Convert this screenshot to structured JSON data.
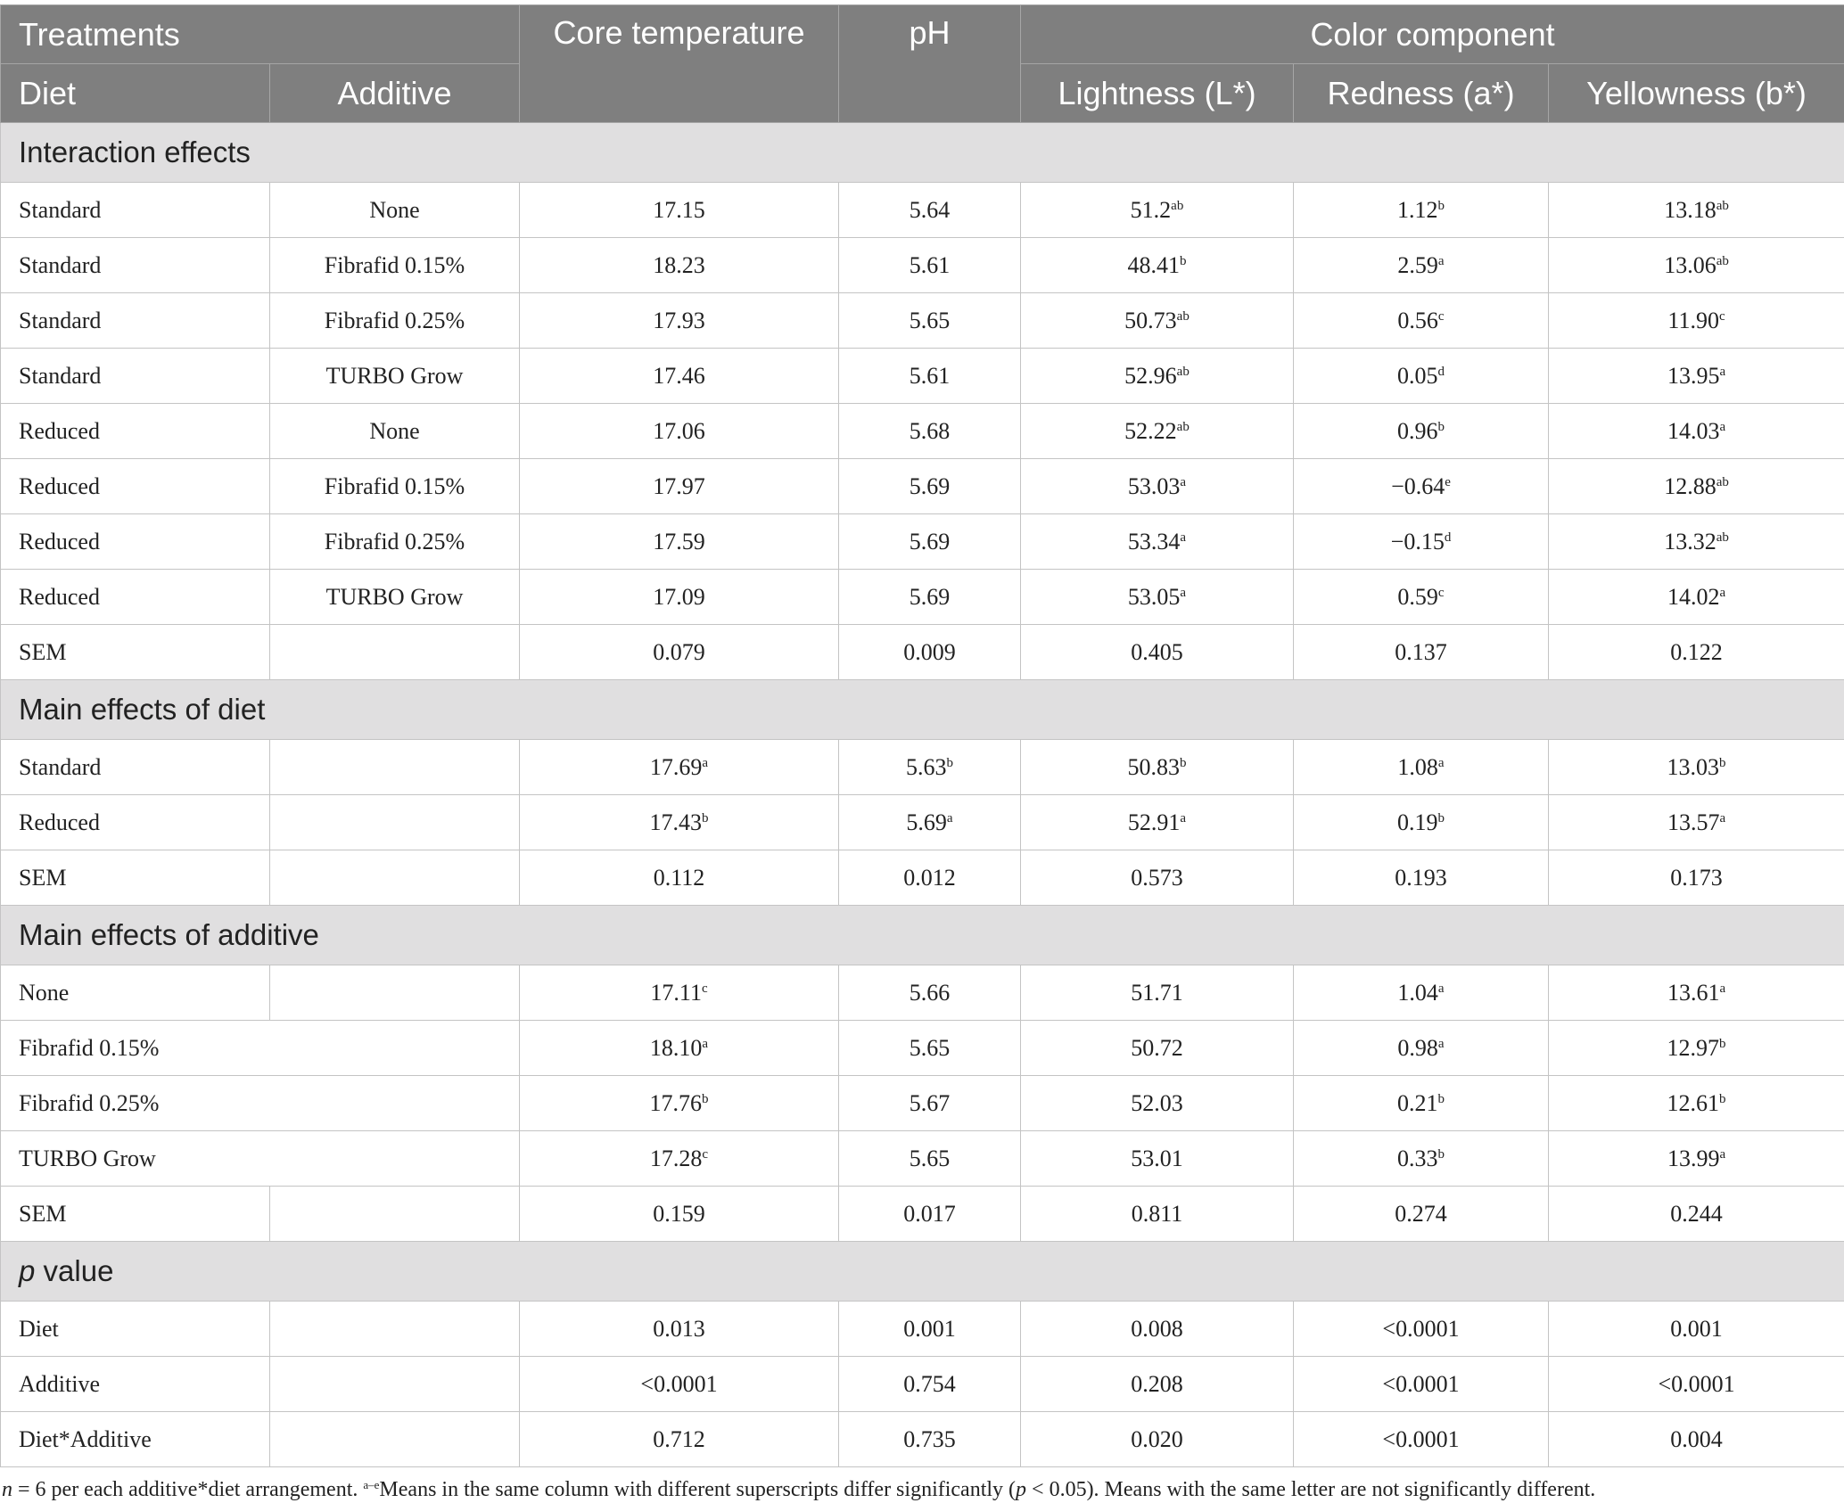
{
  "header": {
    "treatments": "Treatments",
    "diet": "Diet",
    "additive": "Additive",
    "core": "Core temperature",
    "ph": "pH",
    "color": "Color component",
    "l": "Lightness (L*)",
    "a": "Redness (a*)",
    "b": "Yellowness (b*)"
  },
  "sections": [
    {
      "title": [
        {
          "t": "Interaction effects"
        }
      ],
      "rows": [
        {
          "label": "Standard",
          "additive": "None",
          "values": [
            {
              "v": "17.15"
            },
            {
              "v": "5.64"
            },
            {
              "v": "51.2",
              "sup": "ab"
            },
            {
              "v": "1.12",
              "sup": "b"
            },
            {
              "v": "13.18",
              "sup": "ab"
            }
          ]
        },
        {
          "label": "Standard",
          "additive": "Fibrafid 0.15%",
          "values": [
            {
              "v": "18.23"
            },
            {
              "v": "5.61"
            },
            {
              "v": "48.41",
              "sup": "b"
            },
            {
              "v": "2.59",
              "sup": "a"
            },
            {
              "v": "13.06",
              "sup": "ab"
            }
          ]
        },
        {
          "label": "Standard",
          "additive": "Fibrafid 0.25%",
          "values": [
            {
              "v": "17.93"
            },
            {
              "v": "5.65"
            },
            {
              "v": "50.73",
              "sup": "ab"
            },
            {
              "v": "0.56",
              "sup": "c"
            },
            {
              "v": "11.90",
              "sup": "c"
            }
          ]
        },
        {
          "label": "Standard",
          "additive": "TURBO Grow",
          "values": [
            {
              "v": "17.46"
            },
            {
              "v": "5.61"
            },
            {
              "v": "52.96",
              "sup": "ab"
            },
            {
              "v": "0.05",
              "sup": "d"
            },
            {
              "v": "13.95",
              "sup": "a"
            }
          ]
        },
        {
          "label": "Reduced",
          "additive": "None",
          "values": [
            {
              "v": "17.06"
            },
            {
              "v": "5.68"
            },
            {
              "v": "52.22",
              "sup": "ab"
            },
            {
              "v": "0.96",
              "sup": "b"
            },
            {
              "v": "14.03",
              "sup": "a"
            }
          ]
        },
        {
          "label": "Reduced",
          "additive": "Fibrafid 0.15%",
          "values": [
            {
              "v": "17.97"
            },
            {
              "v": "5.69"
            },
            {
              "v": "53.03",
              "sup": "a"
            },
            {
              "v": "−0.64",
              "sup": "e"
            },
            {
              "v": "12.88",
              "sup": "ab"
            }
          ]
        },
        {
          "label": "Reduced",
          "additive": "Fibrafid 0.25%",
          "values": [
            {
              "v": "17.59"
            },
            {
              "v": "5.69"
            },
            {
              "v": "53.34",
              "sup": "a"
            },
            {
              "v": "−0.15",
              "sup": "d"
            },
            {
              "v": "13.32",
              "sup": "ab"
            }
          ]
        },
        {
          "label": "Reduced",
          "additive": "TURBO Grow",
          "values": [
            {
              "v": "17.09"
            },
            {
              "v": "5.69"
            },
            {
              "v": "53.05",
              "sup": "a"
            },
            {
              "v": "0.59",
              "sup": "c"
            },
            {
              "v": "14.02",
              "sup": "a"
            }
          ]
        },
        {
          "label": "SEM",
          "values": [
            {
              "v": "0.079"
            },
            {
              "v": "0.009"
            },
            {
              "v": "0.405"
            },
            {
              "v": "0.137"
            },
            {
              "v": "0.122"
            }
          ]
        }
      ]
    },
    {
      "title": [
        {
          "t": "Main effects of diet"
        }
      ],
      "rows": [
        {
          "label": "Standard",
          "values": [
            {
              "v": "17.69",
              "sup": "a"
            },
            {
              "v": "5.63",
              "sup": "b"
            },
            {
              "v": "50.83",
              "sup": "b"
            },
            {
              "v": "1.08",
              "sup": "a"
            },
            {
              "v": "13.03",
              "sup": "b"
            }
          ]
        },
        {
          "label": "Reduced",
          "values": [
            {
              "v": "17.43",
              "sup": "b"
            },
            {
              "v": "5.69",
              "sup": "a"
            },
            {
              "v": "52.91",
              "sup": "a"
            },
            {
              "v": "0.19",
              "sup": "b"
            },
            {
              "v": "13.57",
              "sup": "a"
            }
          ]
        },
        {
          "label": "SEM",
          "values": [
            {
              "v": "0.112"
            },
            {
              "v": "0.012"
            },
            {
              "v": "0.573"
            },
            {
              "v": "0.193"
            },
            {
              "v": "0.173"
            }
          ]
        }
      ]
    },
    {
      "title": [
        {
          "t": "Main effects of additive"
        }
      ],
      "rows": [
        {
          "label": "None",
          "values": [
            {
              "v": "17.11",
              "sup": "c"
            },
            {
              "v": "5.66"
            },
            {
              "v": "51.71"
            },
            {
              "v": "1.04",
              "sup": "a"
            },
            {
              "v": "13.61",
              "sup": "a"
            }
          ]
        },
        {
          "label": "Fibrafid 0.15%",
          "merged": true,
          "values": [
            {
              "v": "18.10",
              "sup": "a"
            },
            {
              "v": "5.65"
            },
            {
              "v": "50.72"
            },
            {
              "v": "0.98",
              "sup": "a"
            },
            {
              "v": "12.97",
              "sup": "b"
            }
          ]
        },
        {
          "label": "Fibrafid 0.25%",
          "merged": true,
          "values": [
            {
              "v": "17.76",
              "sup": "b"
            },
            {
              "v": "5.67"
            },
            {
              "v": "52.03"
            },
            {
              "v": "0.21",
              "sup": "b"
            },
            {
              "v": "12.61",
              "sup": "b"
            }
          ]
        },
        {
          "label": "TURBO Grow",
          "merged": true,
          "values": [
            {
              "v": "17.28",
              "sup": "c"
            },
            {
              "v": "5.65"
            },
            {
              "v": "53.01"
            },
            {
              "v": "0.33",
              "sup": "b"
            },
            {
              "v": "13.99",
              "sup": "a"
            }
          ]
        },
        {
          "label": "SEM",
          "values": [
            {
              "v": "0.159"
            },
            {
              "v": "0.017"
            },
            {
              "v": "0.811"
            },
            {
              "v": "0.274"
            },
            {
              "v": "0.244"
            }
          ]
        }
      ]
    },
    {
      "title": [
        {
          "t": "p",
          "i": true
        },
        {
          "t": " value"
        }
      ],
      "rows": [
        {
          "label": "Diet",
          "values": [
            {
              "v": "0.013"
            },
            {
              "v": "0.001"
            },
            {
              "v": "0.008"
            },
            {
              "v": "<0.0001"
            },
            {
              "v": "0.001"
            }
          ]
        },
        {
          "label": "Additive",
          "values": [
            {
              "v": "<0.0001"
            },
            {
              "v": "0.754"
            },
            {
              "v": "0.208"
            },
            {
              "v": "<0.0001"
            },
            {
              "v": "<0.0001"
            }
          ]
        },
        {
          "label": "Diet*Additive",
          "values": [
            {
              "v": "0.712"
            },
            {
              "v": "0.735"
            },
            {
              "v": "0.020"
            },
            {
              "v": "<0.0001"
            },
            {
              "v": "0.004"
            }
          ]
        }
      ]
    }
  ],
  "footnote": [
    {
      "t": "n",
      "i": true
    },
    {
      "t": " = 6 per each additive*diet arrangement. "
    },
    {
      "t": "a–e",
      "sup": true
    },
    {
      "t": "Means in the same column with different superscripts differ significantly ("
    },
    {
      "t": "p",
      "i": true
    },
    {
      "t": " < 0.05). Means with the same letter are not significantly different."
    }
  ]
}
